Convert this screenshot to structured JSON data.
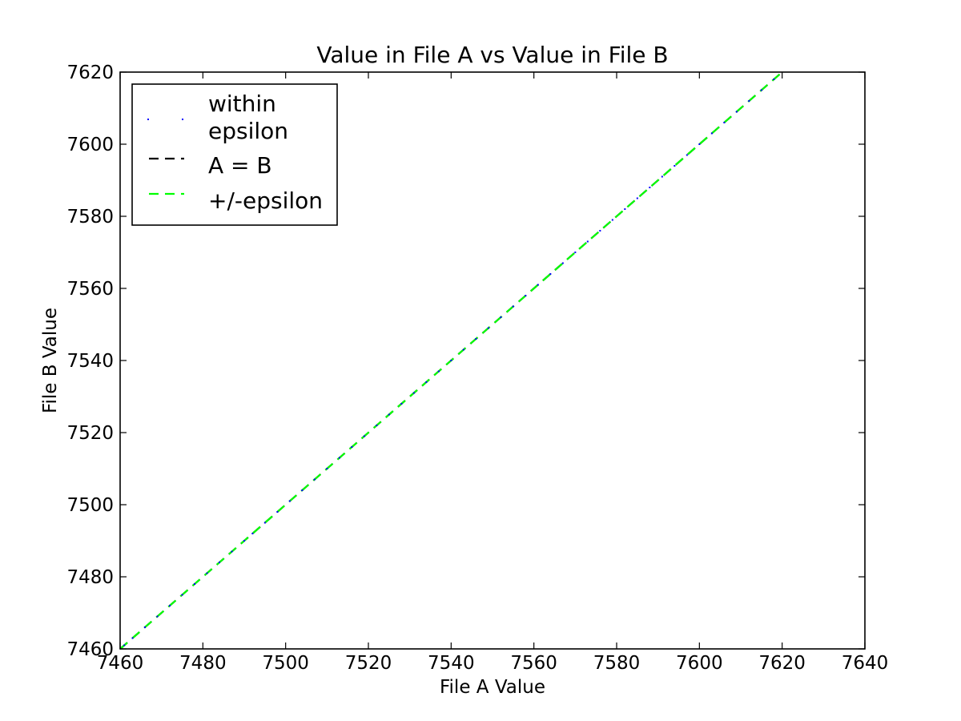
{
  "chart_data": {
    "type": "scatter",
    "title": "Value in File A vs Value in File B",
    "xlabel": "File A Value",
    "ylabel": "File B Value",
    "xlim": [
      7460,
      7640
    ],
    "ylim": [
      7460,
      7620
    ],
    "xticks": [
      "7460",
      "7480",
      "7500",
      "7520",
      "7540",
      "7560",
      "7580",
      "7600",
      "7620",
      "7640"
    ],
    "yticks": [
      "7460",
      "7480",
      "7500",
      "7520",
      "7540",
      "7560",
      "7580",
      "7600",
      "7620"
    ],
    "grid": false,
    "legend_position": "upper-left",
    "series": [
      {
        "name": "within epsilon",
        "legend_lines": [
          "within",
          "epsilon"
        ],
        "kind": "points",
        "color": "#0000ff",
        "x": [
          7461,
          7463,
          7466,
          7469,
          7472,
          7475,
          7478,
          7481,
          7484,
          7487,
          7490,
          7492,
          7495,
          7498,
          7501,
          7504,
          7507,
          7510,
          7513,
          7516,
          7519,
          7522,
          7525,
          7528,
          7531,
          7534,
          7537,
          7540,
          7543,
          7546,
          7549,
          7552,
          7555,
          7558,
          7561,
          7564,
          7567,
          7570,
          7573,
          7576,
          7579,
          7582,
          7585,
          7588,
          7591,
          7594,
          7597,
          7600,
          7603,
          7606,
          7609,
          7612,
          7615,
          7618
        ],
        "y": [
          7461,
          7463,
          7466,
          7469,
          7472,
          7475,
          7478,
          7481,
          7484,
          7487,
          7490,
          7492,
          7495,
          7498,
          7501,
          7504,
          7507,
          7510,
          7513,
          7516,
          7519,
          7522,
          7525,
          7528,
          7531,
          7534,
          7537,
          7540,
          7543,
          7546,
          7549,
          7552,
          7555,
          7558,
          7561,
          7564,
          7567,
          7570,
          7573,
          7576,
          7579,
          7582,
          7585,
          7588,
          7591,
          7594,
          7597,
          7600,
          7603,
          7606,
          7609,
          7612,
          7615,
          7618
        ]
      },
      {
        "name": "A = B",
        "legend_lines": [
          "A = B"
        ],
        "kind": "dashed-line",
        "color": "#000000",
        "x": [
          7460,
          7620
        ],
        "y": [
          7460,
          7620
        ]
      },
      {
        "name": "+/-epsilon",
        "legend_lines": [
          "+/-epsilon"
        ],
        "kind": "dashed-line",
        "color": "#00ff00",
        "x": [
          7460,
          7620
        ],
        "y": [
          7460,
          7620
        ]
      }
    ]
  }
}
